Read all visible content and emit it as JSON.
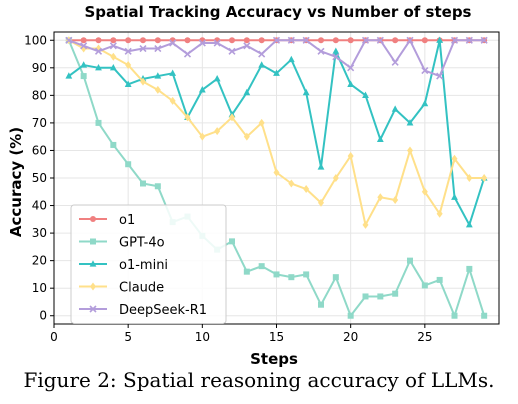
{
  "caption": "Figure 2: Spatial reasoning accuracy of LLMs.",
  "chart_data": {
    "type": "line",
    "title": "Spatial Tracking Accuracy vs Number of steps",
    "xlabel": "Steps",
    "ylabel": "Accuracy (%)",
    "xlim": [
      0,
      30
    ],
    "ylim": [
      -3,
      103
    ],
    "xticks": [
      0,
      5,
      10,
      15,
      20,
      25
    ],
    "yticks": [
      0,
      10,
      20,
      30,
      40,
      50,
      60,
      70,
      80,
      90,
      100
    ],
    "grid": true,
    "legend_position": "lower-left",
    "x": [
      1,
      2,
      3,
      4,
      5,
      6,
      7,
      8,
      9,
      10,
      11,
      12,
      13,
      14,
      15,
      16,
      17,
      18,
      19,
      20,
      21,
      22,
      23,
      24,
      25,
      26,
      27,
      28,
      29
    ],
    "series": [
      {
        "name": "o1",
        "color": "#f08080",
        "marker": "circle",
        "values": [
          100,
          100,
          100,
          100,
          100,
          100,
          100,
          100,
          100,
          100,
          100,
          100,
          100,
          100,
          100,
          100,
          100,
          100,
          100,
          100,
          100,
          100,
          100,
          100,
          100,
          100,
          100,
          100,
          100
        ]
      },
      {
        "name": "GPT-4o",
        "color": "#8fd9c8",
        "marker": "square",
        "values": [
          100,
          87,
          70,
          62,
          55,
          48,
          47,
          34,
          36,
          29,
          24,
          27,
          16,
          18,
          15,
          14,
          15,
          4,
          14,
          0,
          7,
          7,
          8,
          20,
          11,
          13,
          0,
          17,
          0
        ]
      },
      {
        "name": "o1-mini",
        "color": "#33c2c2",
        "marker": "triangle",
        "values": [
          87,
          91,
          90,
          90,
          84,
          86,
          87,
          88,
          72,
          82,
          86,
          73,
          81,
          91,
          88,
          93,
          81,
          54,
          96,
          84,
          80,
          64,
          75,
          70,
          77,
          100,
          43,
          33,
          50
        ]
      },
      {
        "name": "Claude",
        "color": "#ffe08a",
        "marker": "diamond",
        "values": [
          100,
          97,
          97,
          94,
          91,
          85,
          82,
          78,
          72,
          65,
          67,
          72,
          65,
          70,
          52,
          48,
          46,
          41,
          50,
          58,
          33,
          43,
          42,
          60,
          45,
          37,
          57,
          50,
          50
        ]
      },
      {
        "name": "DeepSeek-R1",
        "color": "#b39ddb",
        "marker": "x",
        "values": [
          100,
          98,
          96,
          98,
          96,
          97,
          97,
          99,
          95,
          99,
          99,
          96,
          98,
          95,
          100,
          100,
          100,
          96,
          94,
          90,
          100,
          100,
          92,
          100,
          89,
          87,
          100,
          100,
          100
        ]
      }
    ]
  }
}
